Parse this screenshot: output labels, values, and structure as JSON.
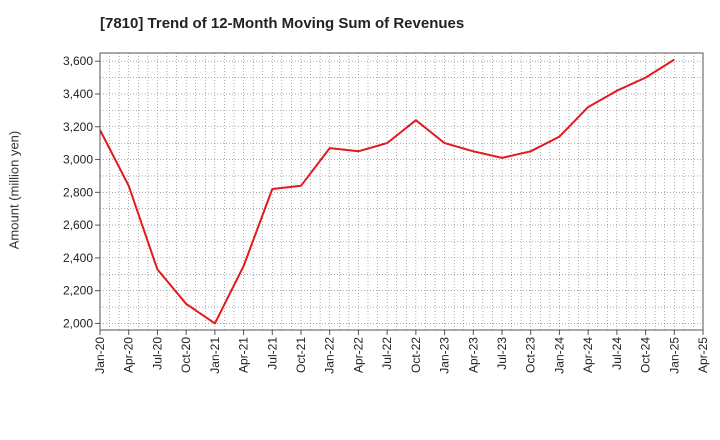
{
  "chart_data": {
    "type": "line",
    "title": "[7810]  Trend of 12-Month Moving Sum of Revenues",
    "ylabel": "Amount (million yen)",
    "xlabel": "",
    "ylim": [
      1960,
      3650
    ],
    "yticks": [
      "2,000",
      "2,200",
      "2,400",
      "2,600",
      "2,800",
      "3,000",
      "3,200",
      "3,400",
      "3,600"
    ],
    "ytick_values": [
      2000,
      2200,
      2400,
      2600,
      2800,
      3000,
      3200,
      3400,
      3600
    ],
    "categories": [
      "Jan-20",
      "Apr-20",
      "Jul-20",
      "Oct-20",
      "Jan-21",
      "Apr-21",
      "Jul-21",
      "Oct-21",
      "Jan-22",
      "Apr-22",
      "Jul-22",
      "Oct-22",
      "Jan-23",
      "Apr-23",
      "Jul-23",
      "Oct-23",
      "Jan-24",
      "Apr-24",
      "Jul-24",
      "Oct-24",
      "Jan-25",
      "Apr-25"
    ],
    "grid": true,
    "series": [
      {
        "color": "#e31a1c",
        "values": [
          3180,
          2840,
          2330,
          2120,
          2000,
          2350,
          2820,
          2840,
          3070,
          3050,
          3100,
          3240,
          3100,
          3050,
          3010,
          3050,
          3140,
          3320,
          3420,
          3500,
          3610,
          null
        ]
      }
    ]
  }
}
